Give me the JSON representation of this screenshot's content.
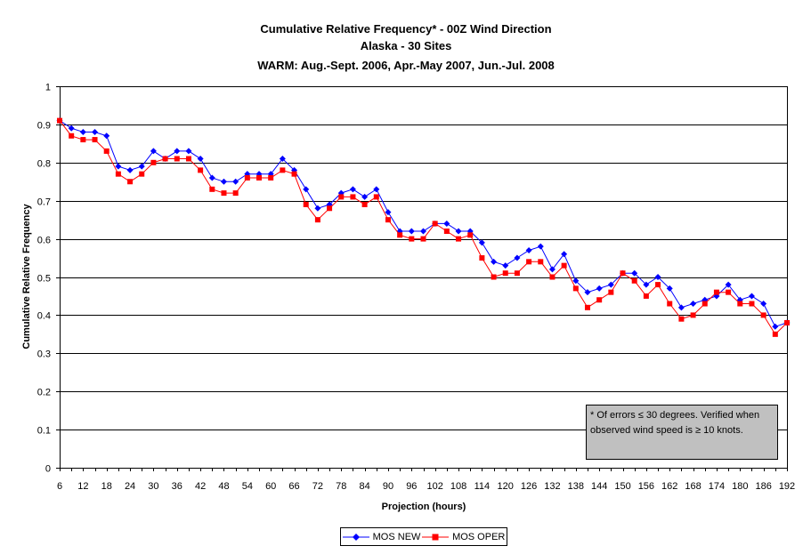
{
  "chart_data": {
    "type": "line",
    "title": [
      "Cumulative Relative Frequency* - 00Z Wind Direction",
      "Alaska - 30 Sites",
      "WARM: Aug.-Sept. 2006, Apr.-May 2007, Jun.-Jul. 2008"
    ],
    "xlabel": "Projection (hours)",
    "ylabel": "Cumulative Relative Frequency",
    "xlim": [
      6,
      192
    ],
    "ylim": [
      0,
      1
    ],
    "xticks": [
      6,
      12,
      18,
      24,
      30,
      36,
      42,
      48,
      54,
      60,
      66,
      72,
      78,
      84,
      90,
      96,
      102,
      108,
      114,
      120,
      126,
      132,
      138,
      144,
      150,
      156,
      162,
      168,
      174,
      180,
      186,
      192
    ],
    "yticks": [
      0,
      0.1,
      0.2,
      0.3,
      0.4,
      0.5,
      0.6,
      0.7,
      0.8,
      0.9,
      1
    ],
    "grid": "horizontal",
    "legend_position": "bottom",
    "x": [
      6,
      9,
      12,
      15,
      18,
      21,
      24,
      27,
      30,
      33,
      36,
      39,
      42,
      45,
      48,
      51,
      54,
      57,
      60,
      63,
      66,
      69,
      72,
      75,
      78,
      81,
      84,
      87,
      90,
      93,
      96,
      99,
      102,
      105,
      108,
      111,
      114,
      117,
      120,
      123,
      126,
      129,
      132,
      135,
      138,
      141,
      144,
      147,
      150,
      153,
      156,
      159,
      162,
      165,
      168,
      171,
      174,
      177,
      180,
      183,
      186,
      189,
      192
    ],
    "series": [
      {
        "name": "MOS NEW",
        "color": "#0000ff",
        "marker": "diamond",
        "values": [
          0.91,
          0.89,
          0.88,
          0.88,
          0.87,
          0.79,
          0.78,
          0.79,
          0.83,
          0.81,
          0.83,
          0.83,
          0.81,
          0.76,
          0.75,
          0.75,
          0.77,
          0.77,
          0.77,
          0.81,
          0.78,
          0.73,
          0.68,
          0.69,
          0.72,
          0.73,
          0.71,
          0.73,
          0.67,
          0.62,
          0.62,
          0.62,
          0.64,
          0.64,
          0.62,
          0.62,
          0.59,
          0.54,
          0.53,
          0.55,
          0.57,
          0.58,
          0.52,
          0.56,
          0.49,
          0.46,
          0.47,
          0.48,
          0.51,
          0.51,
          0.48,
          0.5,
          0.47,
          0.42,
          0.43,
          0.44,
          0.45,
          0.48,
          0.44,
          0.45,
          0.43,
          0.37,
          0.38
        ]
      },
      {
        "name": "MOS OPER",
        "color": "#ff0000",
        "marker": "square",
        "values": [
          0.91,
          0.87,
          0.86,
          0.86,
          0.83,
          0.77,
          0.75,
          0.77,
          0.8,
          0.81,
          0.81,
          0.81,
          0.78,
          0.73,
          0.72,
          0.72,
          0.76,
          0.76,
          0.76,
          0.78,
          0.77,
          0.69,
          0.65,
          0.68,
          0.71,
          0.71,
          0.69,
          0.71,
          0.65,
          0.61,
          0.6,
          0.6,
          0.64,
          0.62,
          0.6,
          0.61,
          0.55,
          0.5,
          0.51,
          0.51,
          0.54,
          0.54,
          0.5,
          0.53,
          0.47,
          0.42,
          0.44,
          0.46,
          0.51,
          0.49,
          0.45,
          0.48,
          0.43,
          0.39,
          0.4,
          0.43,
          0.46,
          0.46,
          0.43,
          0.43,
          0.4,
          0.35,
          0.38
        ]
      }
    ],
    "annotation": [
      "* Of errors ≤ 30 degrees. Verified when",
      "observed wind speed is ≥ 10 knots."
    ]
  }
}
